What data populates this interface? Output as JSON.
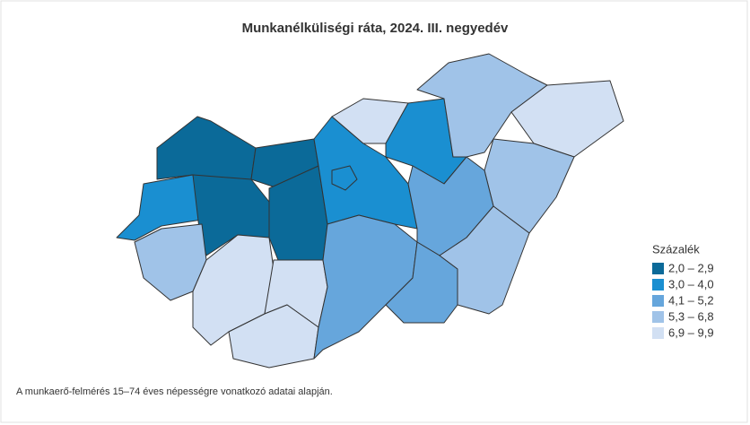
{
  "header": {
    "title": "Munkanélküliségi ráta, 2024. III. negyedév"
  },
  "legend": {
    "title": "Százalék",
    "items": [
      {
        "label": "2,0 – 2,9",
        "color": "#0b6a99"
      },
      {
        "label": "3,0 – 4,0",
        "color": "#1a8fd1"
      },
      {
        "label": "4,1 – 5,2",
        "color": "#66a6dc"
      },
      {
        "label": "5,3 – 6,8",
        "color": "#a0c3e8"
      },
      {
        "label": "6,9 – 9,9",
        "color": "#d2e0f3"
      }
    ]
  },
  "footnote": "A munkaerő-felmérés 15–74 éves népességre vonatkozó adatai alapján."
}
